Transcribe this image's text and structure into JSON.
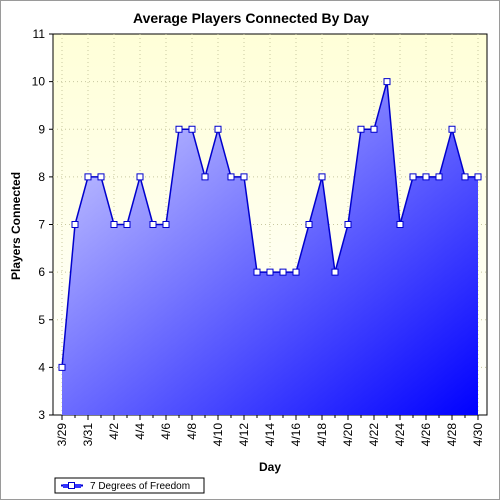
{
  "chart_data": {
    "type": "area",
    "title": "Average Players Connected By Day",
    "xlabel": "Day",
    "ylabel": "Players Connected",
    "ylim": [
      3,
      11
    ],
    "yticks": [
      3,
      4,
      5,
      6,
      7,
      8,
      9,
      10,
      11
    ],
    "x": [
      "3/29",
      "3/30",
      "3/31",
      "4/1",
      "4/2",
      "4/3",
      "4/4",
      "4/5",
      "4/6",
      "4/7",
      "4/8",
      "4/9",
      "4/10",
      "4/11",
      "4/12",
      "4/13",
      "4/14",
      "4/15",
      "4/16",
      "4/17",
      "4/18",
      "4/19",
      "4/20",
      "4/21",
      "4/22",
      "4/23",
      "4/24",
      "4/25",
      "4/26",
      "4/27",
      "4/28",
      "4/29",
      "4/30"
    ],
    "xtick_labels": [
      "3/29",
      "3/31",
      "4/2",
      "4/4",
      "4/6",
      "4/8",
      "4/10",
      "4/12",
      "4/14",
      "4/16",
      "4/18",
      "4/20",
      "4/22",
      "4/24",
      "4/26",
      "4/28",
      "4/30"
    ],
    "series": [
      {
        "name": "7 Degrees of Freedom",
        "values": [
          4,
          7,
          8,
          8,
          7,
          7,
          8,
          7,
          7,
          9,
          9,
          8,
          9,
          8,
          8,
          6,
          6,
          6,
          6,
          7,
          8,
          6,
          7,
          9,
          9,
          10,
          7,
          8,
          8,
          8,
          9,
          8,
          8
        ]
      }
    ],
    "grid": true,
    "legend": "bottom-left",
    "colors": {
      "line": "#0000cc",
      "fill_light": "#d6d6ff",
      "fill_dark": "#0000ff",
      "plot_bg_top": "#ffffd8",
      "plot_bg_bottom": "#ffffff",
      "marker_fill": "#ffffff",
      "grid": "#c8c8a0"
    }
  }
}
